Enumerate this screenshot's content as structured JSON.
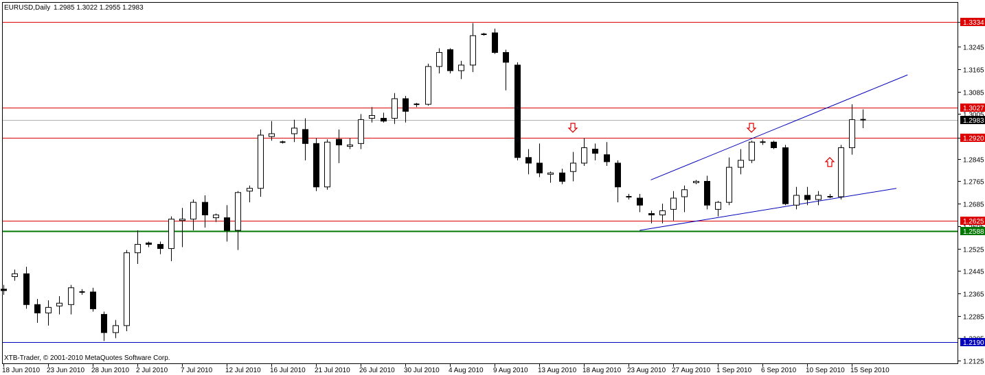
{
  "header": {
    "symbol": "EURUSD,Daily",
    "ohlc": "1.2985 1.3022 1.2955 1.2983"
  },
  "copyright": "XTB-Trader, © 2001-2010 MetaQuotes Software Corp.",
  "colors": {
    "background": "#ffffff",
    "frame": "#000000",
    "bull_body": "#ffffff",
    "bear_body": "#000000",
    "resistance": "#dd0000",
    "support": "#007700",
    "trendline": "#0000bb",
    "current_price_line": "#b0b0b0",
    "arrow": "#dd0000"
  },
  "chart_data": {
    "type": "candlestick",
    "title": "EURUSD,Daily",
    "ylim": [
      1.2125,
      1.3395
    ],
    "y_ticks": [
      "1.3334",
      "1.3245",
      "1.3165",
      "1.3085",
      "1.3005",
      "1.2920",
      "1.2845",
      "1.2765",
      "1.2685",
      "1.2605",
      "1.2525",
      "1.2445",
      "1.2365",
      "1.2285",
      "1.2205",
      "1.2125"
    ],
    "x_labels": [
      {
        "label": "18 Jun 2010",
        "index": 0
      },
      {
        "label": "23 Jun 2010",
        "index": 4
      },
      {
        "label": "28 Jun 2010",
        "index": 8
      },
      {
        "label": "2 Jul 2010",
        "index": 12
      },
      {
        "label": "7 Jul 2010",
        "index": 16
      },
      {
        "label": "12 Jul 2010",
        "index": 20
      },
      {
        "label": "16 Jul 2010",
        "index": 24
      },
      {
        "label": "21 Jul 2010",
        "index": 28
      },
      {
        "label": "26 Jul 2010",
        "index": 32
      },
      {
        "label": "30 Jul 2010",
        "index": 36
      },
      {
        "label": "4 Aug 2010",
        "index": 40
      },
      {
        "label": "9 Aug 2010",
        "index": 44
      },
      {
        "label": "13 Aug 2010",
        "index": 48
      },
      {
        "label": "18 Aug 2010",
        "index": 52
      },
      {
        "label": "23 Aug 2010",
        "index": 56
      },
      {
        "label": "27 Aug 2010",
        "index": 60
      },
      {
        "label": "1 Sep 2010",
        "index": 64
      },
      {
        "label": "6 Sep 2010",
        "index": 68
      },
      {
        "label": "10 Sep 2010",
        "index": 72
      },
      {
        "label": "15 Sep 2010",
        "index": 76
      }
    ],
    "candles": [
      [
        1.238,
        1.2395,
        1.236,
        1.2375
      ],
      [
        1.2425,
        1.245,
        1.241,
        1.2435
      ],
      [
        1.2435,
        1.246,
        1.231,
        1.2325
      ],
      [
        1.2325,
        1.2345,
        1.226,
        1.2295
      ],
      [
        1.2295,
        1.234,
        1.225,
        1.2315
      ],
      [
        1.232,
        1.2355,
        1.229,
        1.233
      ],
      [
        1.2325,
        1.2395,
        1.229,
        1.2385
      ],
      [
        1.237,
        1.238,
        1.236,
        1.237
      ],
      [
        1.237,
        1.2385,
        1.23,
        1.231
      ],
      [
        1.229,
        1.23,
        1.2195,
        1.2225
      ],
      [
        1.2225,
        1.227,
        1.2205,
        1.225
      ],
      [
        1.225,
        1.252,
        1.223,
        1.251
      ],
      [
        1.251,
        1.259,
        1.247,
        1.254
      ],
      [
        1.2545,
        1.255,
        1.253,
        1.254
      ],
      [
        1.254,
        1.255,
        1.2505,
        1.2525
      ],
      [
        1.2525,
        1.264,
        1.248,
        1.263
      ],
      [
        1.2625,
        1.267,
        1.253,
        1.263
      ],
      [
        1.263,
        1.27,
        1.259,
        1.269
      ],
      [
        1.269,
        1.2715,
        1.26,
        1.2645
      ],
      [
        1.2635,
        1.265,
        1.262,
        1.2645
      ],
      [
        1.2635,
        1.268,
        1.255,
        1.259
      ],
      [
        1.259,
        1.273,
        1.252,
        1.2725
      ],
      [
        1.273,
        1.275,
        1.269,
        1.274
      ],
      [
        1.274,
        1.295,
        1.271,
        1.293
      ],
      [
        1.2925,
        1.298,
        1.291,
        1.2935
      ],
      [
        1.2905,
        1.291,
        1.29,
        1.2905
      ],
      [
        1.2935,
        1.2985,
        1.2905,
        1.2955
      ],
      [
        1.295,
        1.299,
        1.284,
        1.29
      ],
      [
        1.29,
        1.292,
        1.273,
        1.2745
      ],
      [
        1.2745,
        1.2915,
        1.2735,
        1.2905
      ],
      [
        1.2915,
        1.295,
        1.283,
        1.2895
      ],
      [
        1.289,
        1.292,
        1.288,
        1.2895
      ],
      [
        1.29,
        1.3005,
        1.288,
        1.2985
      ],
      [
        1.299,
        1.303,
        1.2975,
        1.3
      ],
      [
        1.299,
        1.301,
        1.2975,
        1.298
      ],
      [
        1.299,
        1.308,
        1.297,
        1.306
      ],
      [
        1.306,
        1.307,
        1.2975,
        1.3015
      ],
      [
        1.304,
        1.3045,
        1.303,
        1.304
      ],
      [
        1.304,
        1.3185,
        1.3035,
        1.3175
      ],
      [
        1.3175,
        1.324,
        1.315,
        1.3225
      ],
      [
        1.3235,
        1.324,
        1.315,
        1.316
      ],
      [
        1.316,
        1.3195,
        1.313,
        1.318
      ],
      [
        1.318,
        1.333,
        1.3155,
        1.3285
      ],
      [
        1.329,
        1.3295,
        1.3285,
        1.329
      ],
      [
        1.3295,
        1.331,
        1.322,
        1.3225
      ],
      [
        1.3225,
        1.3235,
        1.309,
        1.319
      ],
      [
        1.318,
        1.319,
        1.284,
        1.285
      ],
      [
        1.285,
        1.288,
        1.279,
        1.283
      ],
      [
        1.283,
        1.29,
        1.278,
        1.2795
      ],
      [
        1.279,
        1.28,
        1.276,
        1.2795
      ],
      [
        1.2795,
        1.281,
        1.2755,
        1.2765
      ],
      [
        1.28,
        1.287,
        1.2765,
        1.283
      ],
      [
        1.283,
        1.292,
        1.282,
        1.2885
      ],
      [
        1.288,
        1.29,
        1.284,
        1.2865
      ],
      [
        1.286,
        1.2905,
        1.282,
        1.2835
      ],
      [
        1.283,
        1.284,
        1.269,
        1.2745
      ],
      [
        1.271,
        1.272,
        1.27,
        1.271
      ],
      [
        1.2705,
        1.272,
        1.2655,
        1.268
      ],
      [
        1.265,
        1.266,
        1.2615,
        1.2645
      ],
      [
        1.2645,
        1.2685,
        1.2615,
        1.266
      ],
      [
        1.2665,
        1.273,
        1.2625,
        1.2705
      ],
      [
        1.271,
        1.275,
        1.2655,
        1.2735
      ],
      [
        1.276,
        1.277,
        1.2755,
        1.2765
      ],
      [
        1.2765,
        1.2785,
        1.2665,
        1.268
      ],
      [
        1.2665,
        1.2695,
        1.264,
        1.269
      ],
      [
        1.269,
        1.285,
        1.268,
        1.2815
      ],
      [
        1.2815,
        1.288,
        1.279,
        1.284
      ],
      [
        1.284,
        1.291,
        1.283,
        1.2905
      ],
      [
        1.2905,
        1.2915,
        1.2895,
        1.2905
      ],
      [
        1.2905,
        1.291,
        1.288,
        1.2885
      ],
      [
        1.2885,
        1.2895,
        1.268,
        1.2685
      ],
      [
        1.268,
        1.2745,
        1.2665,
        1.2715
      ],
      [
        1.2715,
        1.2745,
        1.268,
        1.27
      ],
      [
        1.27,
        1.273,
        1.268,
        1.2715
      ],
      [
        1.271,
        1.272,
        1.2705,
        1.271
      ],
      [
        1.271,
        1.2895,
        1.27,
        1.2885
      ],
      [
        1.2885,
        1.304,
        1.286,
        1.2985
      ],
      [
        1.2985,
        1.3022,
        1.2955,
        1.2983
      ]
    ],
    "horizontal_lines": [
      {
        "value": 1.3334,
        "label": "1.3334",
        "kind": "resistance"
      },
      {
        "value": 1.3027,
        "label": "1.3027",
        "kind": "resistance"
      },
      {
        "value": 1.292,
        "label": "1.2920",
        "kind": "resistance"
      },
      {
        "value": 1.2625,
        "label": "1.2625",
        "kind": "resistance"
      },
      {
        "value": 1.2588,
        "label": "1.2588",
        "kind": "support"
      },
      {
        "value": 1.219,
        "label": "1.2190",
        "kind": "trendline"
      }
    ],
    "current_price": {
      "value": 1.2983,
      "label": "1.2983"
    },
    "trendlines": [
      {
        "from": {
          "index": 57,
          "price": 1.259
        },
        "to": {
          "index": 80,
          "price": 1.274
        }
      },
      {
        "from": {
          "index": 58,
          "price": 1.277
        },
        "to": {
          "index": 81,
          "price": 1.3145
        }
      }
    ],
    "arrows": [
      {
        "index": 51,
        "price": 1.2955,
        "direction": "down"
      },
      {
        "index": 67,
        "price": 1.2955,
        "direction": "down"
      },
      {
        "index": 74,
        "price": 1.2835,
        "direction": "up"
      }
    ]
  }
}
